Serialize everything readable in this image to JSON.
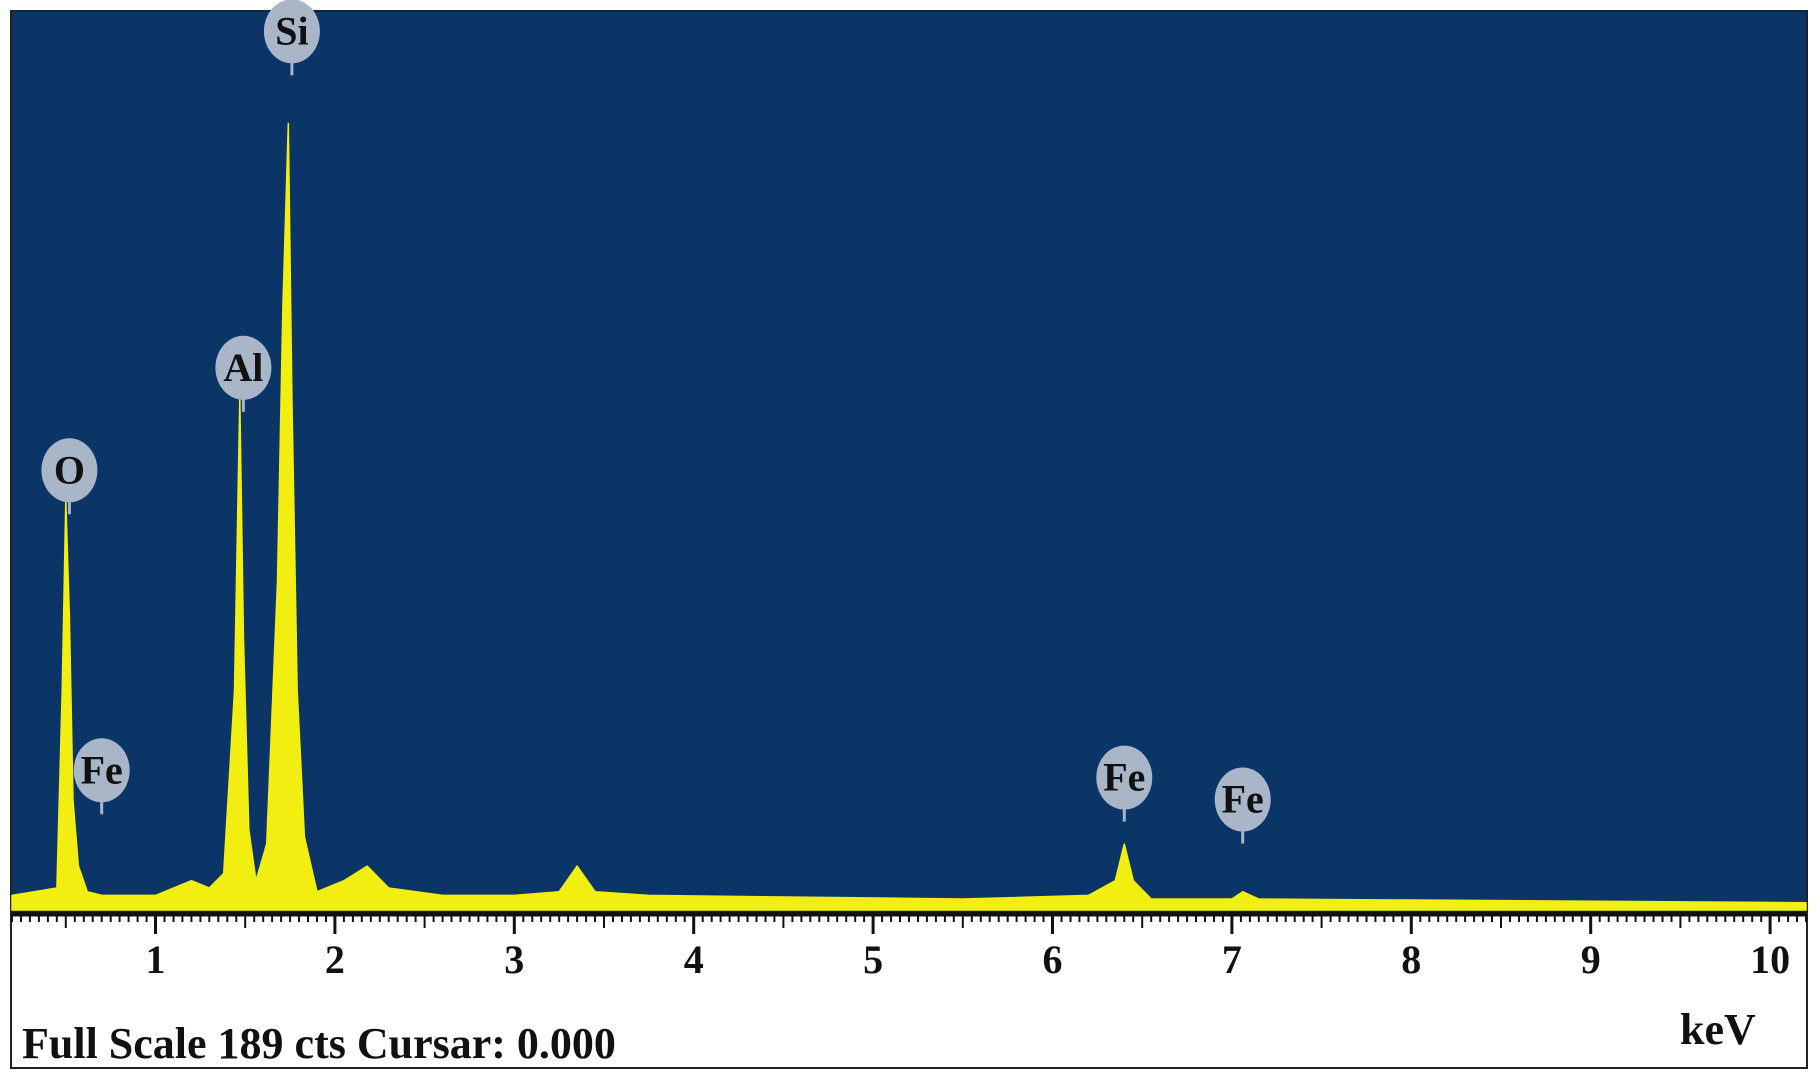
{
  "chart_data": {
    "type": "line",
    "title": "",
    "xlabel": "keV",
    "ylabel": "",
    "xlim": [
      0.2,
      10.2
    ],
    "ylim": [
      0,
      189
    ],
    "x_ticks": [
      1,
      2,
      3,
      4,
      5,
      6,
      7,
      8,
      9,
      10
    ],
    "grid": false,
    "background_color": "#0a3566",
    "series_color": "#f2ee12",
    "marker_color": "#a8b6c8",
    "series": [
      {
        "values_note": "",
        "x": [
          0.2,
          0.45,
          0.48,
          0.5,
          0.52,
          0.54,
          0.57,
          0.62,
          0.7,
          1.0,
          1.2,
          1.3,
          1.38,
          1.44,
          1.47,
          1.49,
          1.52,
          1.56,
          1.62,
          1.68,
          1.71,
          1.74,
          1.76,
          1.79,
          1.83,
          1.9,
          2.05,
          2.18,
          2.3,
          2.6,
          3.0,
          3.25,
          3.35,
          3.45,
          3.75,
          5.5,
          6.2,
          6.35,
          6.4,
          6.45,
          6.55,
          7.0,
          7.06,
          7.15,
          10.2
        ],
        "y": [
          4,
          6,
          60,
          112,
          80,
          30,
          12,
          5,
          4,
          4,
          8,
          6,
          10,
          60,
          140,
          75,
          22,
          8,
          18,
          90,
          165,
          215,
          140,
          60,
          20,
          5,
          8,
          12,
          6,
          4,
          4,
          5,
          12,
          5,
          4,
          3,
          4,
          8,
          18,
          8,
          3,
          3,
          5,
          3,
          2
        ]
      }
    ],
    "peak_labels": [
      {
        "element": "O",
        "x": 0.52,
        "y": 112
      },
      {
        "element": "Fe",
        "x": 0.7,
        "y": 30
      },
      {
        "element": "Al",
        "x": 1.49,
        "y": 140
      },
      {
        "element": "Si",
        "x": 1.76,
        "y": 232
      },
      {
        "element": "Fe",
        "x": 6.4,
        "y": 28
      },
      {
        "element": "Fe",
        "x": 7.06,
        "y": 22
      }
    ]
  },
  "footer": {
    "status": "Full Scale 189 cts Cursar: 0.000",
    "unit": "keV"
  }
}
